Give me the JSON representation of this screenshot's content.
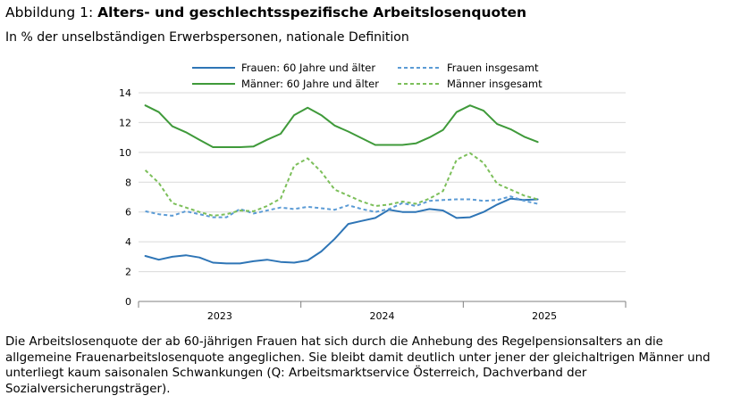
{
  "header": {
    "title_prefix": "Abbildung 1: ",
    "title_main": "Alters- und geschlechtsspezifische Arbeitslosenquoten",
    "subtitle": "In % der unselbständigen Erwerbspersonen, nationale Definition"
  },
  "caption": "Die Arbeitslosenquote der ab 60-jährigen Frauen hat sich durch die Anhebung des Regelpensionsalters an die allgemeine Frauenarbeitslosenquote angeglichen. Sie bleibt damit deutlich unter jener der gleichaltrigen Männer und unterliegt kaum saisonalen Schwankungen (Q: Arbeitsmarktservice Österreich, Dachverband der Sozialversicherungsträger).",
  "colors": {
    "blue": "#2E75B6",
    "lightblue": "#5B9BD5",
    "green": "#3F9A3A",
    "lightgreen": "#7CBF5A",
    "grid": "#D9D9D9",
    "axis": "#7F7F7F"
  },
  "chart_data": {
    "type": "line",
    "ylim": [
      0,
      14
    ],
    "yticks": [
      0,
      2,
      4,
      6,
      8,
      10,
      12,
      14
    ],
    "grid": true,
    "legend_position": "top",
    "x_period_labels": [
      "2023",
      "2024",
      "2025"
    ],
    "x_months_total": 36,
    "series": [
      {
        "name": "Frauen: 60 Jahre und älter",
        "color": "blue",
        "dash": "solid",
        "values": [
          3.05,
          2.8,
          3.0,
          3.1,
          2.95,
          2.6,
          2.55,
          2.55,
          2.7,
          2.8,
          2.65,
          2.6,
          2.75,
          3.35,
          4.2,
          5.2,
          5.4,
          5.6,
          6.15,
          6.0,
          6.0,
          6.2,
          6.1,
          5.6,
          5.65,
          6.0,
          6.5,
          6.9,
          6.8,
          6.85
        ]
      },
      {
        "name": "Frauen insgesamt",
        "color": "lightblue",
        "dash": "dashed",
        "values": [
          6.05,
          5.85,
          5.75,
          6.05,
          5.85,
          5.65,
          5.65,
          6.2,
          5.9,
          6.1,
          6.3,
          6.2,
          6.35,
          6.25,
          6.15,
          6.45,
          6.2,
          6.0,
          6.2,
          6.6,
          6.4,
          6.75,
          6.8,
          6.85,
          6.85,
          6.75,
          6.8,
          7.05,
          6.75,
          6.55
        ]
      },
      {
        "name": "Männer: 60 Jahre und älter",
        "color": "green",
        "dash": "solid",
        "values": [
          13.15,
          12.7,
          11.75,
          11.35,
          10.85,
          10.35,
          10.35,
          10.35,
          10.4,
          10.85,
          11.25,
          12.5,
          13.0,
          12.5,
          11.8,
          11.4,
          10.95,
          10.5,
          10.5,
          10.5,
          10.6,
          11.0,
          11.5,
          12.7,
          13.15,
          12.8,
          11.9,
          11.55,
          11.05,
          10.7
        ]
      },
      {
        "name": "Männer insgesamt",
        "color": "lightgreen",
        "dash": "dashed",
        "values": [
          8.8,
          7.95,
          6.6,
          6.3,
          6.0,
          5.75,
          5.85,
          6.1,
          6.05,
          6.4,
          6.9,
          9.1,
          9.6,
          8.7,
          7.5,
          7.1,
          6.7,
          6.4,
          6.5,
          6.7,
          6.55,
          6.9,
          7.4,
          9.5,
          9.95,
          9.3,
          7.9,
          7.5,
          7.1,
          6.85
        ]
      }
    ]
  }
}
